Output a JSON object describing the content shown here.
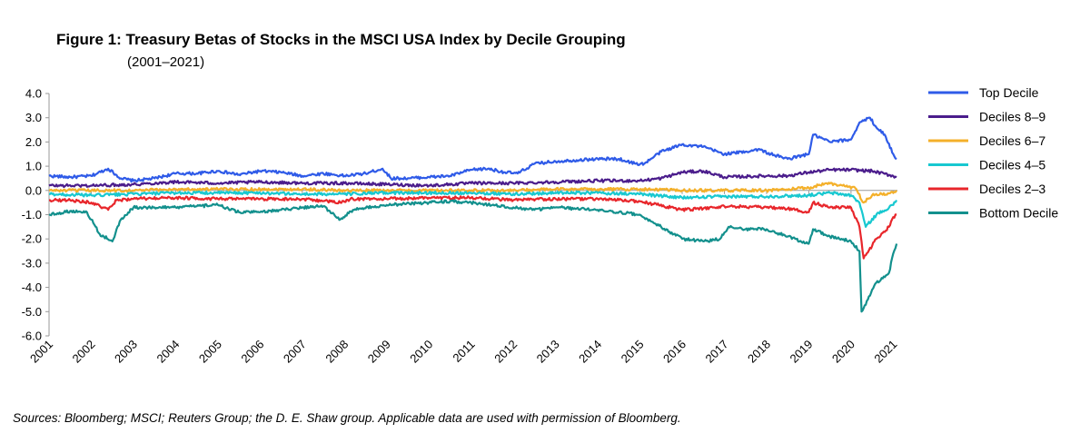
{
  "chart_data": {
    "type": "line",
    "title": "Figure 1: Treasury Betas of Stocks in the MSCI USA Index by Decile Grouping",
    "subtitle": "(2001–2021)",
    "xlabel": "",
    "ylabel": "",
    "xlim": [
      2001,
      2021.1
    ],
    "ylim": [
      -6.0,
      4.0
    ],
    "y_ticks": [
      "4.0",
      "3.0",
      "2.0",
      "1.0",
      "0.0",
      "-1.0",
      "-2.0",
      "-3.0",
      "-4.0",
      "-5.0",
      "-6.0"
    ],
    "x_ticks": [
      "2001",
      "2002",
      "2003",
      "2004",
      "2005",
      "2006",
      "2007",
      "2008",
      "2009",
      "2010",
      "2011",
      "2012",
      "2013",
      "2014",
      "2015",
      "2016",
      "2017",
      "2018",
      "2019",
      "2020",
      "2021"
    ],
    "legend_position": "right",
    "grid": false,
    "series": [
      {
        "name": "Top Decile",
        "color": "#2f5be8",
        "points": [
          [
            2001,
            0.6
          ],
          [
            2001.5,
            0.55
          ],
          [
            2002,
            0.6
          ],
          [
            2002.4,
            0.9
          ],
          [
            2002.7,
            0.5
          ],
          [
            2003,
            0.4
          ],
          [
            2003.5,
            0.5
          ],
          [
            2004,
            0.7
          ],
          [
            2004.5,
            0.7
          ],
          [
            2005,
            0.8
          ],
          [
            2005.5,
            0.65
          ],
          [
            2006,
            0.8
          ],
          [
            2006.5,
            0.75
          ],
          [
            2007,
            0.6
          ],
          [
            2007.5,
            0.7
          ],
          [
            2008,
            0.6
          ],
          [
            2008.5,
            0.7
          ],
          [
            2008.9,
            0.9
          ],
          [
            2009.1,
            0.5
          ],
          [
            2009.5,
            0.5
          ],
          [
            2010,
            0.55
          ],
          [
            2010.5,
            0.6
          ],
          [
            2011,
            0.85
          ],
          [
            2011.4,
            0.9
          ],
          [
            2011.8,
            0.75
          ],
          [
            2012.1,
            0.7
          ],
          [
            2012.5,
            1.1
          ],
          [
            2013,
            1.2
          ],
          [
            2013.5,
            1.25
          ],
          [
            2014,
            1.3
          ],
          [
            2014.5,
            1.3
          ],
          [
            2014.9,
            1.1
          ],
          [
            2015.1,
            1.1
          ],
          [
            2015.5,
            1.6
          ],
          [
            2016,
            1.9
          ],
          [
            2016.5,
            1.8
          ],
          [
            2017,
            1.5
          ],
          [
            2017.5,
            1.6
          ],
          [
            2017.8,
            1.7
          ],
          [
            2018.1,
            1.5
          ],
          [
            2018.5,
            1.3
          ],
          [
            2019,
            1.5
          ],
          [
            2019.1,
            2.3
          ],
          [
            2019.5,
            2.0
          ],
          [
            2020,
            2.1
          ],
          [
            2020.2,
            2.8
          ],
          [
            2020.45,
            3.0
          ],
          [
            2020.6,
            2.6
          ],
          [
            2020.8,
            2.3
          ],
          [
            2021,
            1.5
          ],
          [
            2021.08,
            1.3
          ]
        ]
      },
      {
        "name": "Deciles 8–9",
        "color": "#4b1d8c",
        "points": [
          [
            2001,
            0.2
          ],
          [
            2002,
            0.2
          ],
          [
            2003,
            0.25
          ],
          [
            2004,
            0.35
          ],
          [
            2005,
            0.3
          ],
          [
            2006,
            0.35
          ],
          [
            2007,
            0.3
          ],
          [
            2008,
            0.3
          ],
          [
            2009,
            0.25
          ],
          [
            2010,
            0.2
          ],
          [
            2011,
            0.3
          ],
          [
            2012,
            0.3
          ],
          [
            2013,
            0.35
          ],
          [
            2014,
            0.4
          ],
          [
            2015,
            0.4
          ],
          [
            2015.5,
            0.5
          ],
          [
            2016,
            0.75
          ],
          [
            2016.5,
            0.8
          ],
          [
            2017,
            0.55
          ],
          [
            2018,
            0.6
          ],
          [
            2018.5,
            0.6
          ],
          [
            2019,
            0.75
          ],
          [
            2019.5,
            0.85
          ],
          [
            2020,
            0.85
          ],
          [
            2020.5,
            0.8
          ],
          [
            2021,
            0.6
          ],
          [
            2021.08,
            0.55
          ]
        ]
      },
      {
        "name": "Deciles 6–7",
        "color": "#f4b02a",
        "points": [
          [
            2001,
            0.0
          ],
          [
            2002,
            0.0
          ],
          [
            2003,
            0.0
          ],
          [
            2004,
            0.05
          ],
          [
            2005,
            0.05
          ],
          [
            2006,
            0.05
          ],
          [
            2007,
            0.05
          ],
          [
            2008,
            0.0
          ],
          [
            2009,
            0.0
          ],
          [
            2010,
            0.0
          ],
          [
            2011,
            0.0
          ],
          [
            2012,
            0.0
          ],
          [
            2013,
            0.05
          ],
          [
            2014,
            0.05
          ],
          [
            2015,
            0.05
          ],
          [
            2016,
            0.0
          ],
          [
            2017,
            0.0
          ],
          [
            2018,
            0.0
          ],
          [
            2019,
            0.1
          ],
          [
            2019.4,
            0.3
          ],
          [
            2019.8,
            0.2
          ],
          [
            2020.1,
            0.1
          ],
          [
            2020.3,
            -0.5
          ],
          [
            2020.5,
            -0.2
          ],
          [
            2021,
            -0.1
          ],
          [
            2021.08,
            0.0
          ]
        ]
      },
      {
        "name": "Deciles 4–5",
        "color": "#18c8d0",
        "points": [
          [
            2001,
            -0.15
          ],
          [
            2002,
            -0.2
          ],
          [
            2003,
            -0.15
          ],
          [
            2004,
            -0.1
          ],
          [
            2005,
            -0.1
          ],
          [
            2006,
            -0.1
          ],
          [
            2007,
            -0.15
          ],
          [
            2008,
            -0.15
          ],
          [
            2009,
            -0.1
          ],
          [
            2010,
            -0.1
          ],
          [
            2011,
            -0.1
          ],
          [
            2012,
            -0.15
          ],
          [
            2013,
            -0.1
          ],
          [
            2014,
            -0.1
          ],
          [
            2015,
            -0.15
          ],
          [
            2016,
            -0.3
          ],
          [
            2017,
            -0.25
          ],
          [
            2018,
            -0.25
          ],
          [
            2019,
            -0.2
          ],
          [
            2019.5,
            -0.1
          ],
          [
            2020,
            -0.2
          ],
          [
            2020.2,
            -0.5
          ],
          [
            2020.35,
            -1.5
          ],
          [
            2020.6,
            -1.0
          ],
          [
            2021,
            -0.6
          ],
          [
            2021.08,
            -0.4
          ]
        ]
      },
      {
        "name": "Deciles 2–3",
        "color": "#e8262b",
        "points": [
          [
            2001,
            -0.4
          ],
          [
            2001.5,
            -0.4
          ],
          [
            2002,
            -0.5
          ],
          [
            2002.4,
            -0.8
          ],
          [
            2002.6,
            -0.4
          ],
          [
            2003,
            -0.35
          ],
          [
            2004,
            -0.3
          ],
          [
            2005,
            -0.35
          ],
          [
            2006,
            -0.35
          ],
          [
            2007,
            -0.35
          ],
          [
            2007.9,
            -0.5
          ],
          [
            2008.2,
            -0.35
          ],
          [
            2009,
            -0.35
          ],
          [
            2010,
            -0.3
          ],
          [
            2011,
            -0.3
          ],
          [
            2012,
            -0.4
          ],
          [
            2013,
            -0.35
          ],
          [
            2014,
            -0.35
          ],
          [
            2015,
            -0.45
          ],
          [
            2016,
            -0.8
          ],
          [
            2016.5,
            -0.75
          ],
          [
            2017,
            -0.65
          ],
          [
            2018,
            -0.7
          ],
          [
            2018.5,
            -0.75
          ],
          [
            2019,
            -0.9
          ],
          [
            2019.1,
            -0.5
          ],
          [
            2019.5,
            -0.7
          ],
          [
            2020,
            -0.7
          ],
          [
            2020.2,
            -1.5
          ],
          [
            2020.3,
            -2.8
          ],
          [
            2020.6,
            -2.0
          ],
          [
            2020.9,
            -1.5
          ],
          [
            2021,
            -1.1
          ],
          [
            2021.08,
            -1.0
          ]
        ]
      },
      {
        "name": "Bottom Decile",
        "color": "#13908d",
        "points": [
          [
            2001,
            -1.0
          ],
          [
            2001.5,
            -0.85
          ],
          [
            2001.9,
            -0.9
          ],
          [
            2002.2,
            -1.8
          ],
          [
            2002.5,
            -2.1
          ],
          [
            2002.7,
            -1.2
          ],
          [
            2003,
            -0.7
          ],
          [
            2003.5,
            -0.7
          ],
          [
            2004,
            -0.7
          ],
          [
            2004.5,
            -0.65
          ],
          [
            2005,
            -0.6
          ],
          [
            2005.5,
            -0.9
          ],
          [
            2006,
            -0.9
          ],
          [
            2006.5,
            -0.8
          ],
          [
            2007,
            -0.7
          ],
          [
            2007.5,
            -0.65
          ],
          [
            2007.9,
            -1.2
          ],
          [
            2008.2,
            -0.8
          ],
          [
            2009,
            -0.6
          ],
          [
            2010,
            -0.5
          ],
          [
            2010.5,
            -0.45
          ],
          [
            2011,
            -0.5
          ],
          [
            2011.5,
            -0.6
          ],
          [
            2012,
            -0.7
          ],
          [
            2012.5,
            -0.8
          ],
          [
            2013,
            -0.7
          ],
          [
            2013.5,
            -0.75
          ],
          [
            2014,
            -0.8
          ],
          [
            2014.5,
            -0.9
          ],
          [
            2015,
            -1.0
          ],
          [
            2015.5,
            -1.5
          ],
          [
            2016,
            -2.0
          ],
          [
            2016.5,
            -2.1
          ],
          [
            2016.9,
            -2.0
          ],
          [
            2017.1,
            -1.5
          ],
          [
            2017.5,
            -1.6
          ],
          [
            2018,
            -1.6
          ],
          [
            2018.5,
            -1.9
          ],
          [
            2019,
            -2.2
          ],
          [
            2019.1,
            -1.6
          ],
          [
            2019.5,
            -1.9
          ],
          [
            2020,
            -2.1
          ],
          [
            2020.2,
            -2.5
          ],
          [
            2020.25,
            -5.0
          ],
          [
            2020.4,
            -4.5
          ],
          [
            2020.6,
            -3.8
          ],
          [
            2020.9,
            -3.4
          ],
          [
            2021,
            -2.6
          ],
          [
            2021.08,
            -2.2
          ]
        ]
      }
    ]
  },
  "source_note": "Sources: Bloomberg; MSCI; Reuters Group; the D. E. Shaw group. Applicable data are used with permission of Bloomberg."
}
